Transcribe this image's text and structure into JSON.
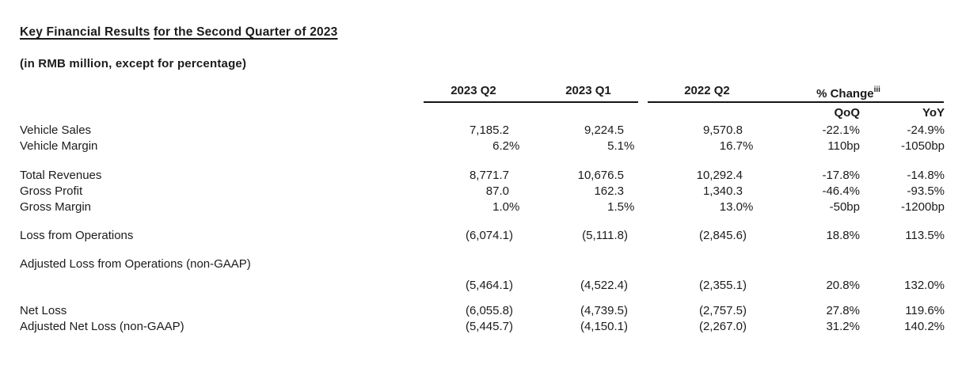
{
  "title": {
    "part1": "Key Financial Results",
    "part2": "for the Second Quarter of 2023"
  },
  "subtitle": "(in RMB million, except for percentage)",
  "colors": {
    "background": "#ffffff",
    "text": "#1b1b1b",
    "rule": "#151515"
  },
  "table": {
    "column_headers": {
      "q2_2023": "2023 Q2",
      "q1_2023": "2023 Q1",
      "q2_2022": "2022 Q2",
      "pct_change": "% Change",
      "pct_change_superscript": "iii",
      "qoq": "QoQ",
      "yoy": "YoY"
    },
    "rows": [
      {
        "label": "Vehicle Sales",
        "q2_2023": "7,185.2",
        "q1_2023": "9,224.5",
        "q2_2022": "9,570.8",
        "qoq": "-22.1%",
        "yoy": "-24.9%"
      },
      {
        "label": "Vehicle Margin",
        "q2_2023": "6.2%",
        "q1_2023": "5.1%",
        "q2_2022": "16.7%",
        "qoq": "110bp",
        "yoy": "-1050bp"
      },
      {
        "label": "Total Revenues",
        "q2_2023": "8,771.7",
        "q1_2023": "10,676.5",
        "q2_2022": "10,292.4",
        "qoq": "-17.8%",
        "yoy": "-14.8%"
      },
      {
        "label": "Gross Profit",
        "q2_2023": "87.0",
        "q1_2023": "162.3",
        "q2_2022": "1,340.3",
        "qoq": "-46.4%",
        "yoy": "-93.5%"
      },
      {
        "label": "Gross Margin",
        "q2_2023": "1.0%",
        "q1_2023": "1.5%",
        "q2_2022": "13.0%",
        "qoq": "-50bp",
        "yoy": "-1200bp"
      },
      {
        "label": "Loss from Operations",
        "q2_2023": "(6,074.1)",
        "q1_2023": "(5,111.8)",
        "q2_2022": "(2,845.6)",
        "qoq": "18.8%",
        "yoy": "113.5%"
      },
      {
        "label": "Adjusted Loss from Operations (non-GAAP)",
        "q2_2023": "(5,464.1)",
        "q1_2023": "(4,522.4)",
        "q2_2022": "(2,355.1)",
        "qoq": "20.8%",
        "yoy": "132.0%"
      },
      {
        "label": "Net Loss",
        "q2_2023": "(6,055.8)",
        "q1_2023": "(4,739.5)",
        "q2_2022": "(2,757.5)",
        "qoq": "27.8%",
        "yoy": "119.6%"
      },
      {
        "label": "Adjusted Net Loss (non-GAAP)",
        "q2_2023": "(5,445.7)",
        "q1_2023": "(4,150.1)",
        "q2_2022": "(2,267.0)",
        "qoq": "31.2%",
        "yoy": "140.2%"
      }
    ]
  }
}
